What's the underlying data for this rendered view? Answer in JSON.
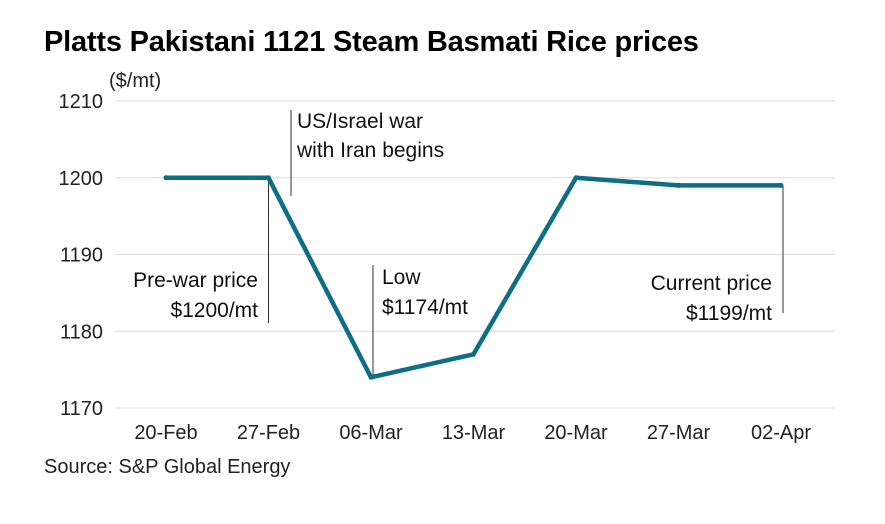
{
  "chart_data": {
    "type": "line",
    "title": "Platts Pakistani 1121 Steam Basmati Rice prices",
    "ylabel": "($/mt)",
    "xlabel": "",
    "categories": [
      "20-Feb",
      "27-Feb",
      "06-Mar",
      "13-Mar",
      "20-Mar",
      "27-Mar",
      "02-Apr"
    ],
    "series": [
      {
        "name": "Platts Pakistani 1121 Steam Basmati Rice",
        "values": [
          1200,
          1200,
          1174,
          1177,
          1200,
          1199,
          1199
        ]
      }
    ],
    "ylim": [
      1170,
      1210
    ],
    "yticks": [
      1210,
      1200,
      1190,
      1180,
      1170
    ],
    "grid": true,
    "line_color": "#0d6e85",
    "annotations": [
      {
        "lines": [
          "US/Israel war",
          "with Iran begins"
        ],
        "category": "27-Feb",
        "value": 1200
      },
      {
        "lines": [
          "Pre-war price",
          "$1200/mt"
        ],
        "category": "27-Feb",
        "value": 1200
      },
      {
        "lines": [
          "Low",
          "$1174/mt"
        ],
        "category": "06-Mar",
        "value": 1174
      },
      {
        "lines": [
          "Current price",
          "$1199/mt"
        ],
        "category": "02-Apr",
        "value": 1199
      }
    ],
    "source": "Source: S&P Global Energy"
  }
}
